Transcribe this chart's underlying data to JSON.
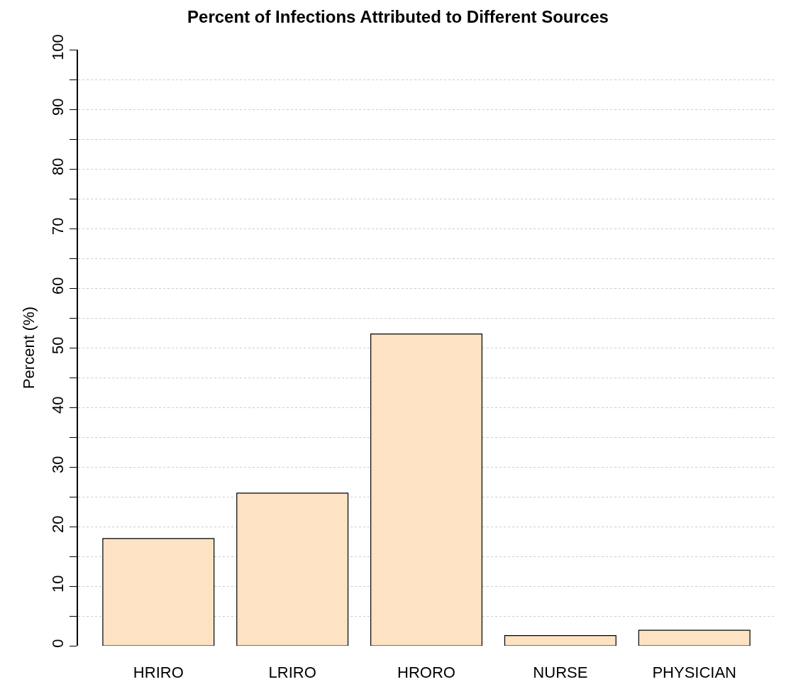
{
  "chart_data": {
    "type": "bar",
    "title": "Percent of Infections Attributed to Different Sources",
    "ylabel": "Percent (%)",
    "categories": [
      "HRIRO",
      "LRIRO",
      "HRORO",
      "NURSE",
      "PHYSICIAN"
    ],
    "values": [
      18,
      25.6,
      52.3,
      1.7,
      2.6
    ],
    "color": "#fde2c4",
    "ylim": [
      0,
      100
    ],
    "yticks": [
      0,
      {
        "value": 5,
        "label": null
      },
      10,
      {
        "value": 15,
        "label": null
      },
      20,
      {
        "value": 25,
        "label": null
      },
      30,
      {
        "value": 35,
        "label": null
      },
      40,
      {
        "value": 45,
        "label": null
      },
      50,
      {
        "value": 55,
        "label": null
      },
      60,
      {
        "value": 65,
        "label": null
      },
      70,
      {
        "value": 75,
        "label": null
      },
      80,
      {
        "value": 85,
        "label": null
      },
      90,
      {
        "value": 95,
        "label": null
      },
      100
    ],
    "grid": "y"
  }
}
